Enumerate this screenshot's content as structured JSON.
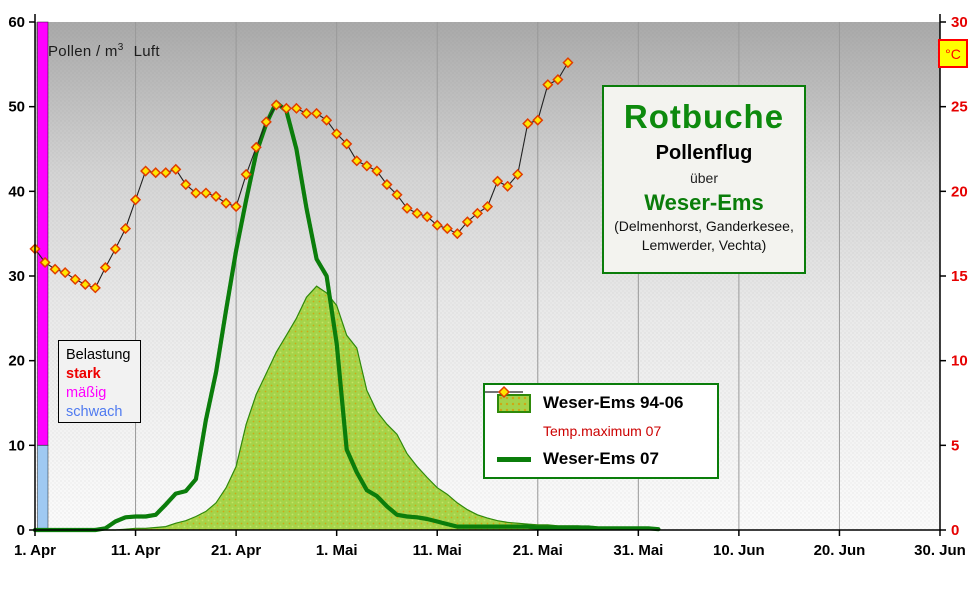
{
  "chart_data": {
    "type": "combo",
    "title_box": {
      "title": "Rotbuche",
      "subtitle": "Pollenflug",
      "connector": "über",
      "region": "Weser-Ems",
      "locations_line1": "(Delmenhorst, Ganderkesee,",
      "locations_line2": "Lemwerder, Vechta)"
    },
    "units_label": {
      "prefix": "Pollen / m",
      "sup": "3",
      "suffix": "Luft"
    },
    "celsius_label": "°C",
    "x_axis": {
      "tick_days": [
        0,
        10,
        20,
        30,
        40,
        50,
        60,
        70,
        80,
        90
      ],
      "tick_labels": [
        "1. Apr",
        "11. Apr",
        "21. Apr",
        "1. Mai",
        "11. Mai",
        "21. Mai",
        "31. Mai",
        "10. Jun",
        "20. Jun",
        "30. Jun"
      ],
      "gridlines": "vertical-only"
    },
    "y_left": {
      "min": 0,
      "max": 60,
      "ticks": [
        0,
        10,
        20,
        30,
        40,
        50,
        60
      ],
      "label_color": "#000000"
    },
    "y_right": {
      "min": 0,
      "max": 30,
      "ticks": [
        0,
        5,
        10,
        15,
        20,
        25,
        30
      ],
      "label_color": "#e60000"
    },
    "belastung": {
      "title": "Belastung",
      "levels": [
        {
          "label": "stark",
          "color": "#ee0000"
        },
        {
          "label": "mäßig",
          "color": "#ff00ff"
        },
        {
          "label": "schwach",
          "color": "#4f7af0"
        }
      ]
    },
    "load_bands": [
      {
        "label": "mäßig",
        "from": 10,
        "to": 60,
        "color": "#ff00ff"
      },
      {
        "label": "schwach",
        "from": 0,
        "to": 10,
        "color": "#9fc9f2"
      }
    ],
    "legend": [
      {
        "label": "Weser-Ems 94-06",
        "type": "area",
        "text_color": "#000000"
      },
      {
        "label": "Temp.maximum 07",
        "type": "line-marker",
        "text_color": "#cc0000"
      },
      {
        "label": "Weser-Ems 07",
        "type": "line",
        "text_color": "#000000"
      }
    ],
    "series": [
      {
        "name": "Weser-Ems 94-06",
        "axis": "left",
        "type": "area",
        "fill_color": "#a5d34a",
        "edge_color": "#2f8a0a",
        "start_day": 0,
        "values": [
          0,
          0,
          0,
          0,
          0,
          0,
          0,
          0,
          0,
          0.1,
          0.2,
          0.2,
          0.3,
          0.4,
          0.8,
          1.1,
          1.6,
          2.2,
          3.2,
          5,
          7.5,
          12.5,
          16,
          18.5,
          21,
          23,
          25,
          27.5,
          28.8,
          28,
          26.5,
          23,
          21.5,
          16.5,
          14,
          12.5,
          11.3,
          9,
          7.5,
          6.2,
          5,
          4.2,
          3.2,
          2.4,
          1.8,
          1.4,
          1.1,
          0.9,
          0.8,
          0.7,
          0.6,
          0.6,
          0.5,
          0.5,
          0.5,
          0.4,
          0.3,
          0.3,
          0.2,
          0.2,
          0.2,
          0.1,
          0
        ]
      },
      {
        "name": "Temp.maximum 07",
        "axis": "right",
        "type": "line-marker",
        "line_color": "#222222",
        "marker_fill": "#ffe600",
        "marker_stroke": "#e03c00",
        "start_day": 0,
        "values": [
          16.6,
          15.8,
          15.4,
          15.2,
          14.8,
          14.5,
          14.3,
          15.5,
          16.6,
          17.8,
          19.5,
          21.2,
          21.1,
          21.1,
          21.3,
          20.4,
          19.9,
          19.9,
          19.7,
          19.3,
          19.1,
          21.0,
          22.6,
          24.1,
          25.1,
          24.9,
          24.9,
          24.6,
          24.6,
          24.2,
          23.4,
          22.8,
          21.8,
          21.5,
          21.2,
          20.4,
          19.8,
          19.0,
          18.7,
          18.5,
          18.0,
          17.8,
          17.5,
          18.2,
          18.7,
          19.1,
          20.6,
          20.3,
          21.0,
          24.0,
          24.2,
          26.3,
          26.6,
          27.6
        ]
      },
      {
        "name": "Weser-Ems 07",
        "axis": "left",
        "type": "line",
        "line_color": "#0b7d0b",
        "start_day": 0,
        "values": [
          0,
          0,
          0,
          0,
          0,
          0,
          0,
          0.2,
          1,
          1.5,
          1.6,
          1.6,
          1.8,
          3,
          4.3,
          4.6,
          6,
          13,
          18.6,
          26,
          33,
          39,
          44.5,
          48,
          50.5,
          49.5,
          45,
          38,
          32,
          30,
          22,
          9.5,
          6.8,
          4.7,
          4,
          2.8,
          1.8,
          1.6,
          1.5,
          1.3,
          1,
          0.7,
          0.4,
          0.4,
          0.4,
          0.4,
          0.4,
          0.4,
          0.4,
          0.4,
          0.3,
          0.3,
          0.3,
          0.3,
          0.3,
          0.3,
          0.2,
          0.2,
          0.2,
          0.2,
          0.2,
          0.2,
          0.1
        ]
      }
    ]
  }
}
